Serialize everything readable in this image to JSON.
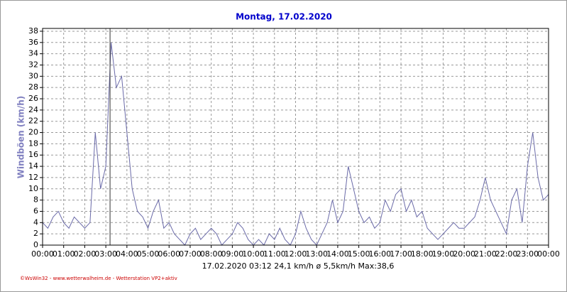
{
  "chart_data": {
    "type": "line",
    "title": "Montag, 17.02.2020",
    "y_label": "Windböen  (km/h)",
    "status": "17.02.2020  03:12   24,1 km/h   ø 5,5km/h  Max:38,6",
    "footer": "©WsWin32 - www.wetterwalheim.de - Wetterstation VP2+aktiv",
    "cursor": 3.2,
    "color": "#6a6aa8",
    "grid": true,
    "xlim": [
      0,
      24
    ],
    "ylim": [
      0,
      38.5
    ],
    "xticks": [
      {
        "value": 0,
        "label": "00:00"
      },
      {
        "value": 1,
        "label": "01:00"
      },
      {
        "value": 2,
        "label": "02:00"
      },
      {
        "value": 3,
        "label": "03:00"
      },
      {
        "value": 4,
        "label": "04:00"
      },
      {
        "value": 5,
        "label": "05:00"
      },
      {
        "value": 6,
        "label": "06:00"
      },
      {
        "value": 7,
        "label": "07:00"
      },
      {
        "value": 8,
        "label": "08:00"
      },
      {
        "value": 9,
        "label": "09:00"
      },
      {
        "value": 10,
        "label": "10:00"
      },
      {
        "value": 11,
        "label": "11:00"
      },
      {
        "value": 12,
        "label": "12:00"
      },
      {
        "value": 13,
        "label": "13:00"
      },
      {
        "value": 14,
        "label": "14:00"
      },
      {
        "value": 15,
        "label": "15:00"
      },
      {
        "value": 16,
        "label": "16:00"
      },
      {
        "value": 17,
        "label": "17:00"
      },
      {
        "value": 18,
        "label": "18:00"
      },
      {
        "value": 19,
        "label": "19:00"
      },
      {
        "value": 20,
        "label": "20:00"
      },
      {
        "value": 21,
        "label": "21:00"
      },
      {
        "value": 22,
        "label": "22:00"
      },
      {
        "value": 23,
        "label": "23:00"
      },
      {
        "value": 24,
        "label": "00:00"
      }
    ],
    "yticks": [
      0,
      2,
      4,
      6,
      8,
      10,
      12,
      14,
      16,
      18,
      20,
      22,
      24,
      26,
      28,
      30,
      32,
      34,
      36,
      38
    ],
    "x": [
      0,
      0.25,
      0.5,
      0.75,
      1,
      1.25,
      1.5,
      1.75,
      2,
      2.25,
      2.5,
      2.75,
      3,
      3.25,
      3.5,
      3.75,
      4,
      4.25,
      4.5,
      4.75,
      5,
      5.25,
      5.5,
      5.75,
      6,
      6.25,
      6.5,
      6.75,
      7,
      7.25,
      7.5,
      7.75,
      8,
      8.25,
      8.5,
      8.75,
      9,
      9.25,
      9.5,
      9.75,
      10,
      10.25,
      10.5,
      10.75,
      11,
      11.25,
      11.5,
      11.75,
      12,
      12.25,
      12.5,
      12.75,
      13,
      13.25,
      13.5,
      13.75,
      14,
      14.25,
      14.5,
      14.75,
      15,
      15.25,
      15.5,
      15.75,
      16,
      16.25,
      16.5,
      16.75,
      17,
      17.25,
      17.5,
      17.75,
      18,
      18.25,
      18.5,
      18.75,
      19,
      19.25,
      19.5,
      19.75,
      20,
      20.25,
      20.5,
      20.75,
      21,
      21.25,
      21.5,
      21.75,
      22,
      22.25,
      22.5,
      22.75,
      23,
      23.25,
      23.5,
      23.75,
      24
    ],
    "values": [
      4,
      3,
      5,
      6,
      4,
      3,
      5,
      4,
      3,
      4,
      20,
      10,
      14,
      36,
      28,
      30,
      20,
      10,
      6,
      5,
      3,
      6,
      8,
      3,
      4,
      2,
      1,
      0,
      2,
      3,
      1,
      2,
      3,
      2,
      0,
      1,
      2,
      4,
      3,
      1,
      0,
      1,
      0,
      2,
      1,
      3,
      1,
      0,
      2,
      6,
      3,
      1,
      0,
      2,
      4,
      8,
      4,
      6,
      14,
      10,
      6,
      4,
      5,
      3,
      4,
      8,
      6,
      9,
      10,
      6,
      8,
      5,
      6,
      3,
      2,
      1,
      2,
      3,
      4,
      3,
      3,
      4,
      5,
      8,
      12,
      8,
      6,
      4,
      2,
      8,
      10,
      4,
      14,
      20,
      12,
      8,
      9
    ]
  }
}
